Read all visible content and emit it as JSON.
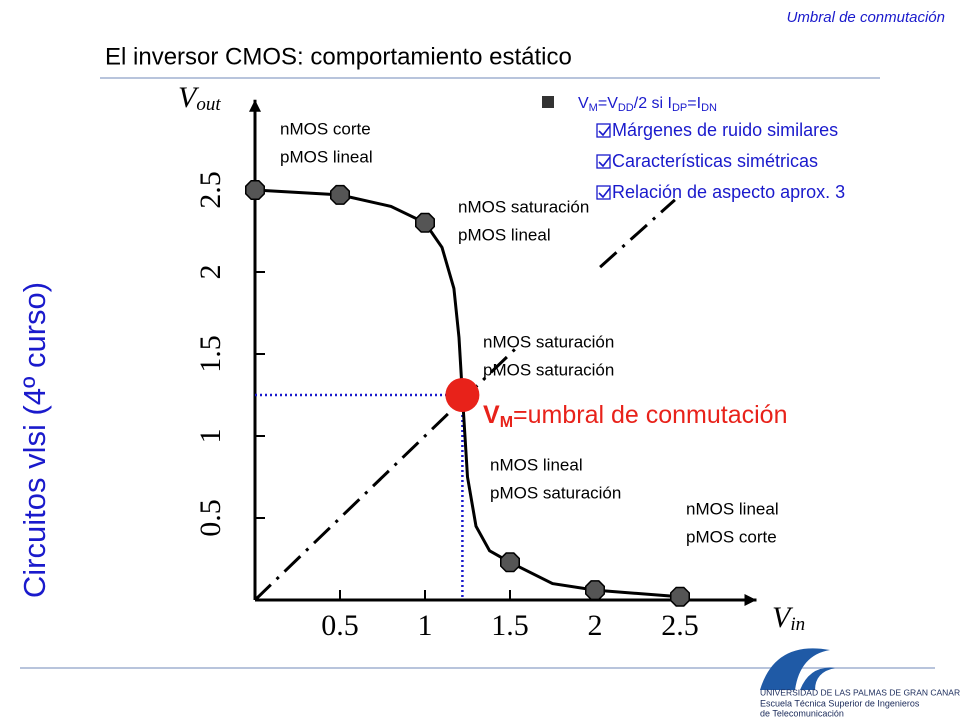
{
  "header": "Umbral de conmutación",
  "title": "El inversor CMOS: comportamiento estático",
  "side_title": "Circuitos vlsi (4º curso)",
  "chart_data": {
    "type": "line",
    "x_label": {
      "main": "V",
      "sub": "in"
    },
    "y_label": {
      "main": "V",
      "sub": "out"
    },
    "xlim": [
      0,
      2.95
    ],
    "ylim": [
      0,
      3.05
    ],
    "xticks": [
      0.5,
      1,
      1.5,
      2,
      2.5
    ],
    "yticks": [
      0.5,
      1,
      1.5,
      2,
      2.5
    ],
    "curve": {
      "color": "#000000",
      "x": [
        0,
        0.5,
        0.8,
        1,
        1.1,
        1.17,
        1.2,
        1.22,
        1.25,
        1.3,
        1.38,
        1.5,
        1.75,
        2,
        2.5
      ],
      "values": [
        2.5,
        2.47,
        2.4,
        2.3,
        2.15,
        1.9,
        1.6,
        1.25,
        0.75,
        0.45,
        0.3,
        0.23,
        0.1,
        0.06,
        0.02
      ]
    },
    "markers": {
      "color": "#555555",
      "x": [
        0,
        0.5,
        1,
        1.5,
        2,
        2.5
      ],
      "values": [
        2.5,
        2.47,
        2.3,
        0.23,
        0.06,
        0.02
      ]
    },
    "reference_line": {
      "x": [
        0,
        1.55,
        1.8,
        2.03,
        2.47
      ],
      "values": [
        0,
        1.55,
        null,
        2.03,
        2.44
      ]
    },
    "vm_point": {
      "x": 1.22,
      "value": 1.25,
      "color": "#e8221a"
    },
    "vm_label": {
      "main": "V",
      "sub": "M",
      "rest": "=umbral de conmutación"
    },
    "annotations": [
      [
        "nMOS corte",
        "pMOS lineal"
      ],
      [
        "nMOS saturación",
        "pMOS lineal"
      ],
      [
        "nMOS saturación",
        "pMOS saturación"
      ],
      [
        "nMOS lineal",
        "pMOS saturación"
      ],
      [
        "nMOS lineal",
        "pMOS corte"
      ]
    ]
  },
  "notes": {
    "condition": [
      "V",
      "M",
      "=V",
      "DD",
      "/2 si I",
      "DP",
      "=I",
      "DN"
    ],
    "bullets": [
      "Márgenes de ruido similares",
      "Características simétricas",
      "Relación de aspecto aprox. 3"
    ]
  },
  "logo": [
    "UNIVERSIDAD DE LAS PALMAS DE GRAN CANARIA",
    "Escuela Técnica Superior de Ingenieros",
    "de Telecomunicación"
  ]
}
